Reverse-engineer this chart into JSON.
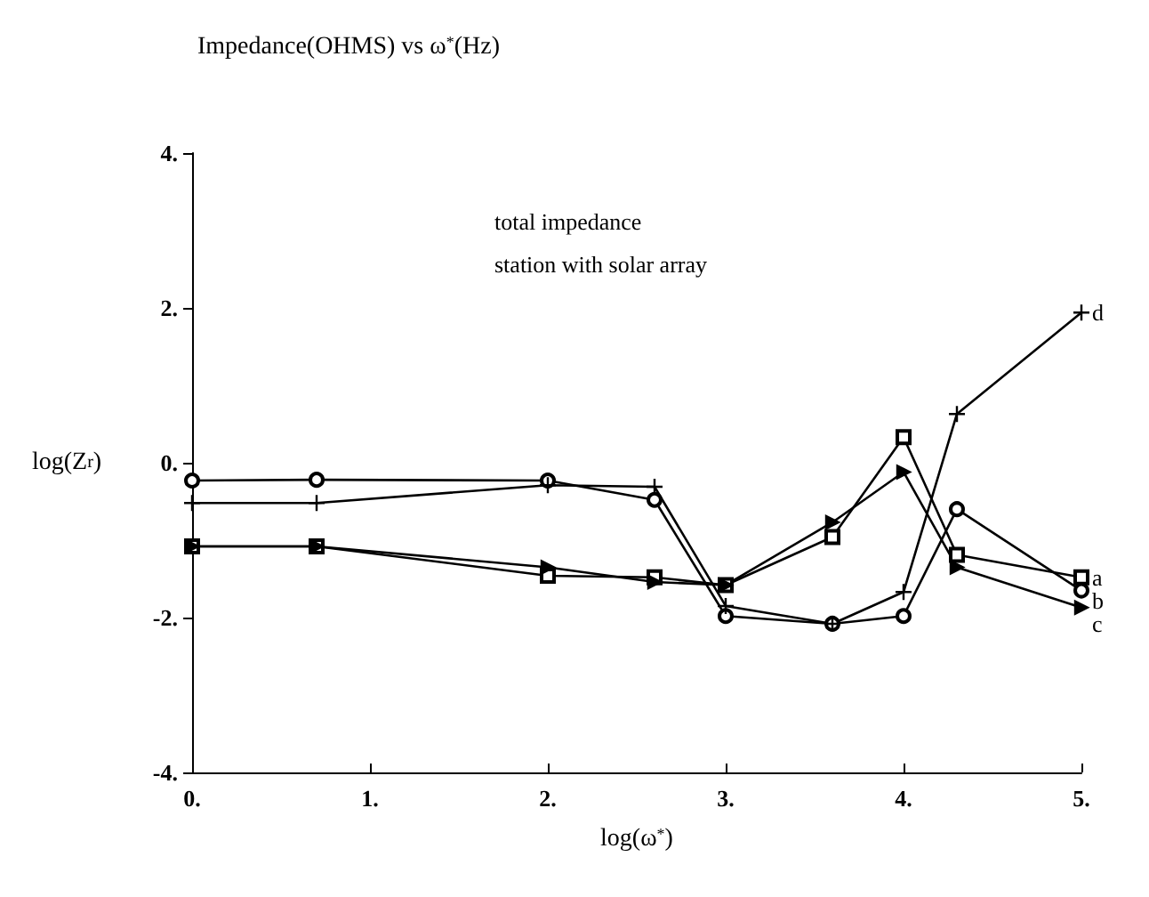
{
  "chart_data": {
    "type": "line",
    "title": "Impedance(OHMS) vs ω$^{*}$(Hz)",
    "xlabel": "log(ω$^{*}$)",
    "ylabel": "log(Z$_{r}$)",
    "x": [
      0,
      0.7,
      2,
      2.6,
      3,
      3.6,
      4,
      4.3,
      5
    ],
    "xlim": [
      0,
      5
    ],
    "xticks": [
      {
        "value": 0,
        "label": "0."
      },
      {
        "value": 1,
        "label": "1."
      },
      {
        "value": 2,
        "label": "2."
      },
      {
        "value": 3,
        "label": "3."
      },
      {
        "value": 4,
        "label": "4."
      },
      {
        "value": 5,
        "label": "5."
      }
    ],
    "ylim": [
      -4,
      4
    ],
    "yticks": [
      {
        "value": -4,
        "label": "-4."
      },
      {
        "value": -2,
        "label": "-2."
      },
      {
        "value": 0,
        "label": "0."
      },
      {
        "value": 2,
        "label": "2."
      },
      {
        "value": 4,
        "label": "4."
      }
    ],
    "grid": false,
    "line_style": "solid",
    "series": [
      {
        "name": "a",
        "color": "#000000",
        "marker": "square",
        "values": [
          -1.08,
          -1.08,
          -1.46,
          -1.48,
          -1.58,
          -0.96,
          0.33,
          -1.19,
          -1.48
        ]
      },
      {
        "name": "b",
        "color": "#000000",
        "marker": "circle",
        "values": [
          -0.23,
          -0.22,
          -0.23,
          -0.48,
          -1.98,
          -2.08,
          -1.98,
          -0.6,
          -1.65
        ]
      },
      {
        "name": "c",
        "color": "#000000",
        "marker": "triangle",
        "values": [
          -1.08,
          -1.08,
          -1.35,
          -1.54,
          -1.58,
          -0.77,
          -0.12,
          -1.35,
          -1.87
        ]
      },
      {
        "name": "d",
        "color": "#000000",
        "marker": "cross",
        "values": [
          -0.52,
          -0.52,
          -0.29,
          -0.31,
          -1.85,
          -2.08,
          -1.67,
          0.63,
          1.94
        ]
      }
    ],
    "annotations": [
      "total impedance",
      "station with solar array"
    ]
  }
}
